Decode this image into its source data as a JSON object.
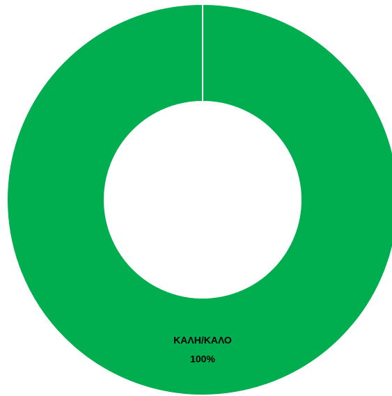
{
  "chart_data": {
    "type": "donut",
    "categories": [
      "ΚΑΛΗ/ΚΑΛΟ"
    ],
    "values": [
      100
    ],
    "value_labels": [
      "100%"
    ],
    "colors": [
      "#00ad4f"
    ]
  }
}
